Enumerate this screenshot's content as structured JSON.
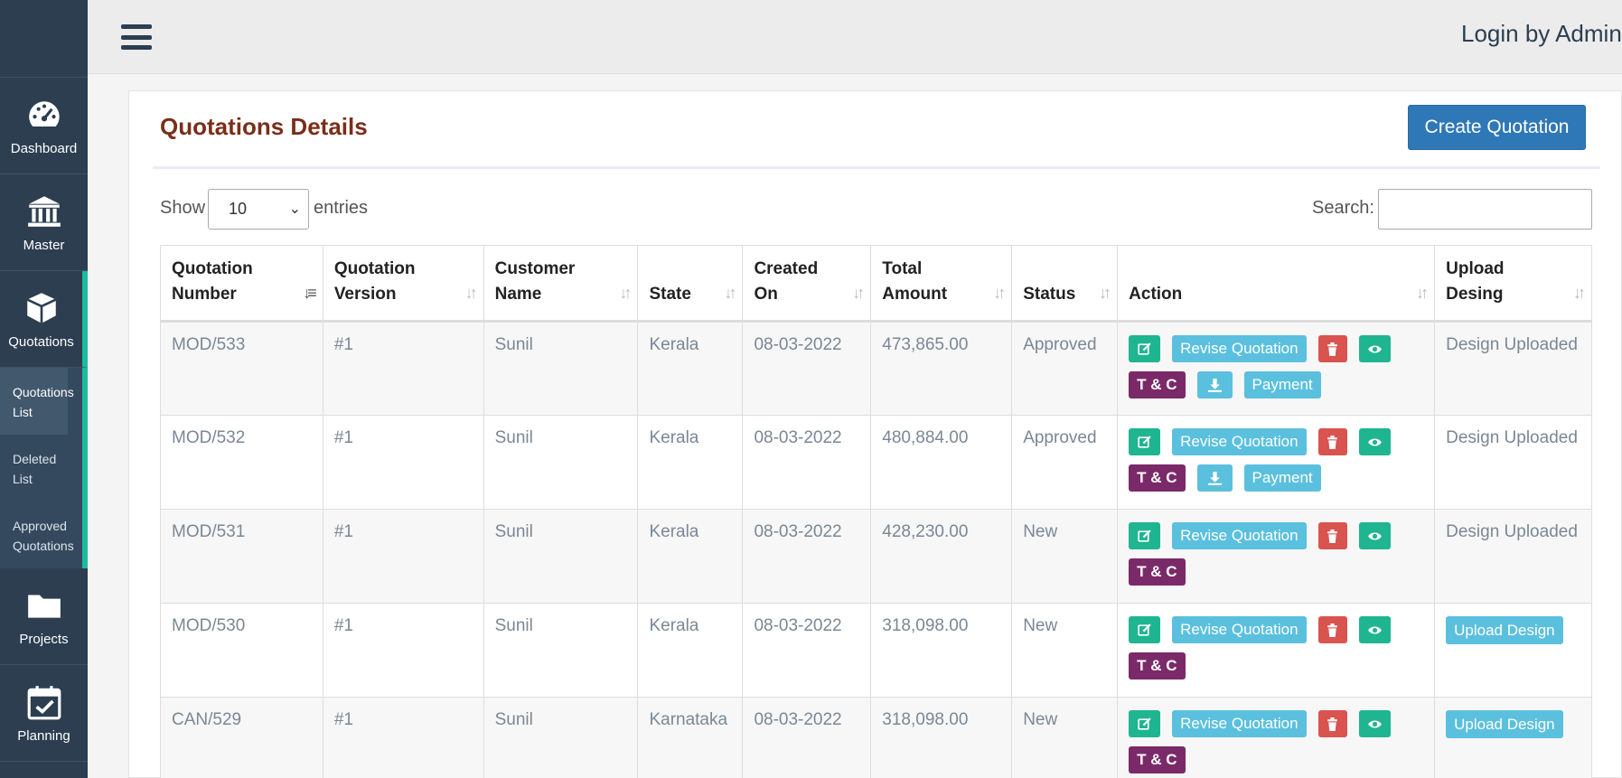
{
  "sidebar": {
    "items": [
      {
        "label": "Dashboard",
        "icon": "gauge-icon"
      },
      {
        "label": "Master",
        "icon": "bank-icon"
      },
      {
        "label": "Quotations",
        "icon": "cube-icon"
      },
      {
        "label": "Projects",
        "icon": "folder-icon"
      },
      {
        "label": "Planning",
        "icon": "calendar-check-icon"
      }
    ],
    "submenu": [
      "Quotations List",
      "Deleted List",
      "Approved Quotations"
    ]
  },
  "topbar": {
    "login_text": "Login by Admin"
  },
  "page": {
    "title": "Quotations Details",
    "create_button": "Create Quotation"
  },
  "controls": {
    "show_label": "Show",
    "entries_value": "10",
    "entries_label": "entries",
    "search_label": "Search:",
    "search_value": ""
  },
  "table": {
    "columns": [
      {
        "line1": "Quotation",
        "line2": "Number"
      },
      {
        "line1": "Quotation",
        "line2": "Version"
      },
      {
        "line1": "Customer",
        "line2": "Name"
      },
      {
        "line1": "",
        "line2": "State"
      },
      {
        "line1": "Created",
        "line2": "On"
      },
      {
        "line1": "Total",
        "line2": "Amount"
      },
      {
        "line1": "",
        "line2": "Status"
      },
      {
        "line1": "",
        "line2": "Action"
      },
      {
        "line1": "Upload",
        "line2": "Desing"
      }
    ],
    "buttons": {
      "revise": "Revise Quotation",
      "tc": "T & C",
      "payment": "Payment",
      "upload": "Upload Design"
    },
    "rows": [
      {
        "number": "MOD/533",
        "version": "#1",
        "customer": "Sunil",
        "state": "Kerala",
        "created": "08-03-2022",
        "amount": "473,865.00",
        "status": "Approved",
        "upload": "Design Uploaded"
      },
      {
        "number": "MOD/532",
        "version": "#1",
        "customer": "Sunil",
        "state": "Kerala",
        "created": "08-03-2022",
        "amount": "480,884.00",
        "status": "Approved",
        "upload": "Design Uploaded"
      },
      {
        "number": "MOD/531",
        "version": "#1",
        "customer": "Sunil",
        "state": "Kerala",
        "created": "08-03-2022",
        "amount": "428,230.00",
        "status": "New",
        "upload": "Design Uploaded"
      },
      {
        "number": "MOD/530",
        "version": "#1",
        "customer": "Sunil",
        "state": "Kerala",
        "created": "08-03-2022",
        "amount": "318,098.00",
        "status": "New",
        "upload": ""
      },
      {
        "number": "CAN/529",
        "version": "#1",
        "customer": "Sunil",
        "state": "Karnataka",
        "created": "08-03-2022",
        "amount": "318,098.00",
        "status": "New",
        "upload": ""
      }
    ]
  },
  "colors": {
    "sidebar": "#2c3e50",
    "accent": "#1abc9c",
    "primary": "#2f78b7",
    "title": "#7a2e1a",
    "info": "#5bc0de",
    "danger": "#d9534f",
    "purple": "#7b2a69"
  }
}
